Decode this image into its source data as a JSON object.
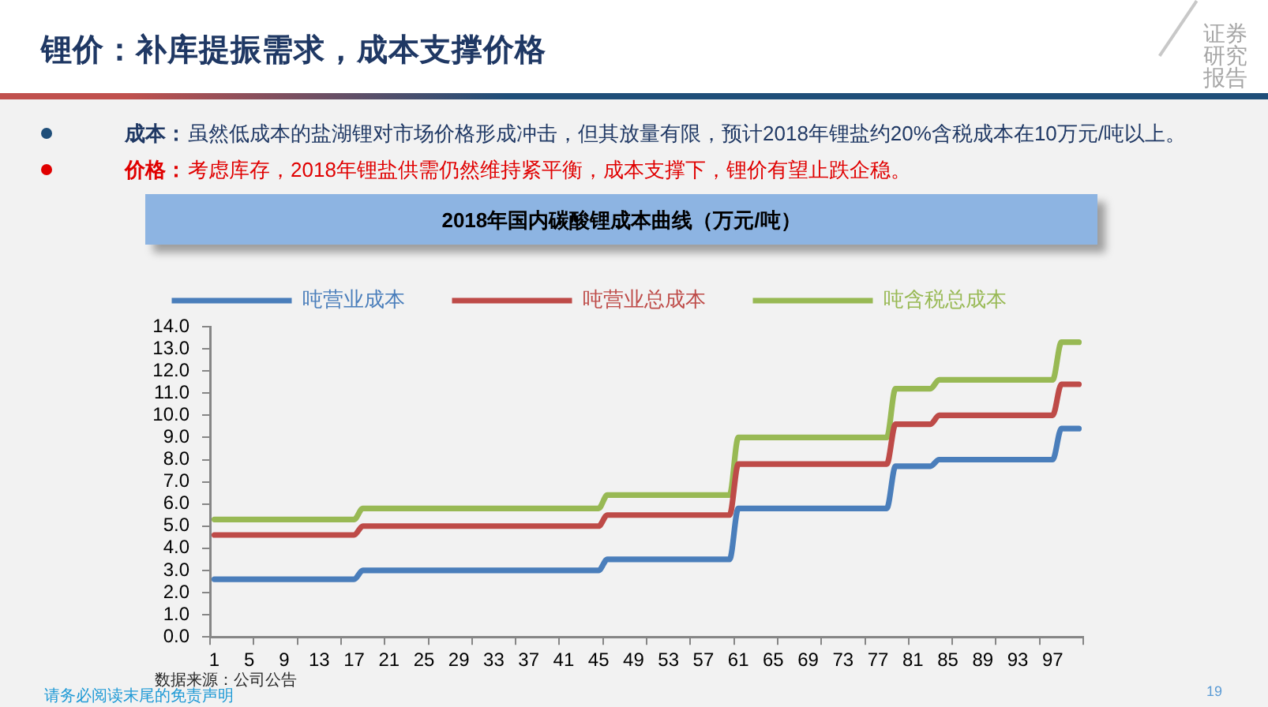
{
  "chart_data": {
    "type": "line",
    "title": "锂价：补库提振需求，成本支撑价格",
    "subtitle": "2018年国内碳酸锂成本曲线（万元/吨）",
    "categories": [
      "1",
      null,
      null,
      null,
      "5",
      null,
      null,
      null,
      "9",
      null,
      null,
      null,
      "13",
      null,
      null,
      null,
      "17",
      null,
      null,
      null,
      "21",
      null,
      null,
      null,
      "25",
      null,
      null,
      null,
      "29",
      null,
      null,
      null,
      "33",
      null,
      null,
      null,
      "37",
      null,
      null,
      null,
      "41",
      null,
      null,
      null,
      "45",
      null,
      null,
      null,
      "49",
      null,
      null,
      null,
      "53",
      null,
      null,
      null,
      "57",
      null,
      null,
      null,
      "61",
      null,
      null,
      null,
      "65",
      null,
      null,
      null,
      "69",
      null,
      null,
      null,
      "73",
      null,
      null,
      null,
      "77",
      null,
      null,
      null,
      "81",
      null,
      null,
      null,
      "85",
      null,
      null,
      null,
      "89",
      null,
      null,
      null,
      "93",
      null,
      null,
      null,
      "97",
      null,
      null,
      null
    ],
    "series": [
      {
        "name": "吨营业成本",
        "color": "#4a7ebb",
        "values": [
          2.6,
          2.6,
          2.6,
          2.6,
          2.6,
          2.6,
          2.6,
          2.6,
          2.6,
          2.6,
          2.6,
          2.6,
          2.6,
          2.6,
          2.6,
          2.6,
          2.6,
          3,
          3,
          3,
          3,
          3,
          3,
          3,
          3,
          3,
          3,
          3,
          3,
          3,
          3,
          3,
          3,
          3,
          3,
          3,
          3,
          3,
          3,
          3,
          3,
          3,
          3,
          3,
          3,
          3.5,
          3.5,
          3.5,
          3.5,
          3.5,
          3.5,
          3.5,
          3.5,
          3.5,
          3.5,
          3.5,
          3.5,
          3.5,
          3.5,
          3.5,
          5.8,
          5.8,
          5.8,
          5.8,
          5.8,
          5.8,
          5.8,
          5.8,
          5.8,
          5.8,
          5.8,
          5.8,
          5.8,
          5.8,
          5.8,
          5.8,
          5.8,
          5.8,
          7.7,
          7.7,
          7.7,
          7.7,
          7.7,
          8,
          8,
          8,
          8,
          8,
          8,
          8,
          8,
          8,
          8,
          8,
          8,
          8,
          8,
          9.4,
          9.4,
          9.4
        ]
      },
      {
        "name": "吨营业总成本",
        "color": "#be4b48",
        "values": [
          4.6,
          4.6,
          4.6,
          4.6,
          4.6,
          4.6,
          4.6,
          4.6,
          4.6,
          4.6,
          4.6,
          4.6,
          4.6,
          4.6,
          4.6,
          4.6,
          4.6,
          5,
          5,
          5,
          5,
          5,
          5,
          5,
          5,
          5,
          5,
          5,
          5,
          5,
          5,
          5,
          5,
          5,
          5,
          5,
          5,
          5,
          5,
          5,
          5,
          5,
          5,
          5,
          5,
          5.5,
          5.5,
          5.5,
          5.5,
          5.5,
          5.5,
          5.5,
          5.5,
          5.5,
          5.5,
          5.5,
          5.5,
          5.5,
          5.5,
          5.5,
          7.8,
          7.8,
          7.8,
          7.8,
          7.8,
          7.8,
          7.8,
          7.8,
          7.8,
          7.8,
          7.8,
          7.8,
          7.8,
          7.8,
          7.8,
          7.8,
          7.8,
          7.8,
          9.6,
          9.6,
          9.6,
          9.6,
          9.6,
          10,
          10,
          10,
          10,
          10,
          10,
          10,
          10,
          10,
          10,
          10,
          10,
          10,
          10,
          11.4,
          11.4,
          11.4
        ]
      },
      {
        "name": "吨含税总成本",
        "color": "#98b954",
        "values": [
          5.3,
          5.3,
          5.3,
          5.3,
          5.3,
          5.3,
          5.3,
          5.3,
          5.3,
          5.3,
          5.3,
          5.3,
          5.3,
          5.3,
          5.3,
          5.3,
          5.3,
          5.8,
          5.8,
          5.8,
          5.8,
          5.8,
          5.8,
          5.8,
          5.8,
          5.8,
          5.8,
          5.8,
          5.8,
          5.8,
          5.8,
          5.8,
          5.8,
          5.8,
          5.8,
          5.8,
          5.8,
          5.8,
          5.8,
          5.8,
          5.8,
          5.8,
          5.8,
          5.8,
          5.8,
          6.4,
          6.4,
          6.4,
          6.4,
          6.4,
          6.4,
          6.4,
          6.4,
          6.4,
          6.4,
          6.4,
          6.4,
          6.4,
          6.4,
          6.4,
          9,
          9,
          9,
          9,
          9,
          9,
          9,
          9,
          9,
          9,
          9,
          9,
          9,
          9,
          9,
          9,
          9,
          9,
          11.2,
          11.2,
          11.2,
          11.2,
          11.2,
          11.6,
          11.6,
          11.6,
          11.6,
          11.6,
          11.6,
          11.6,
          11.6,
          11.6,
          11.6,
          11.6,
          11.6,
          11.6,
          11.6,
          13.3,
          13.3,
          13.3
        ]
      }
    ],
    "ylim": [
      0,
      14
    ],
    "yticks": [
      {
        "value": 0,
        "label": "0.0"
      },
      {
        "value": 1,
        "label": "1.0"
      },
      {
        "value": 2,
        "label": "2.0"
      },
      {
        "value": 3,
        "label": "3.0"
      },
      {
        "value": 4,
        "label": "4.0"
      },
      {
        "value": 5,
        "label": "5.0"
      },
      {
        "value": 6,
        "label": "6.0"
      },
      {
        "value": 7,
        "label": "7.0"
      },
      {
        "value": 8,
        "label": "8.0"
      },
      {
        "value": 9,
        "label": "9.0"
      },
      {
        "value": 10,
        "label": "10.0"
      },
      {
        "value": 11,
        "label": "11.0"
      },
      {
        "value": 12,
        "label": "12.0"
      },
      {
        "value": 13,
        "label": "13.0"
      },
      {
        "value": 14,
        "label": "14.0"
      }
    ],
    "legend": "top",
    "marker": "none",
    "line_style": "solid",
    "annotations": [
      "成本：",
      "虽然低成本的盐湖锂对市场价格形成冲击，但其放量有限，预计2018年锂盐约20%含税成本在10万元/吨以上。",
      "价格：",
      "考虑库存，2018年锂盐供需仍然维持紧平衡，成本支撑下，锂价有望止跌企稳。",
      "数据来源：公司公告",
      "请务必阅读末尾的免责声明",
      "证券研究报告",
      "19"
    ]
  }
}
